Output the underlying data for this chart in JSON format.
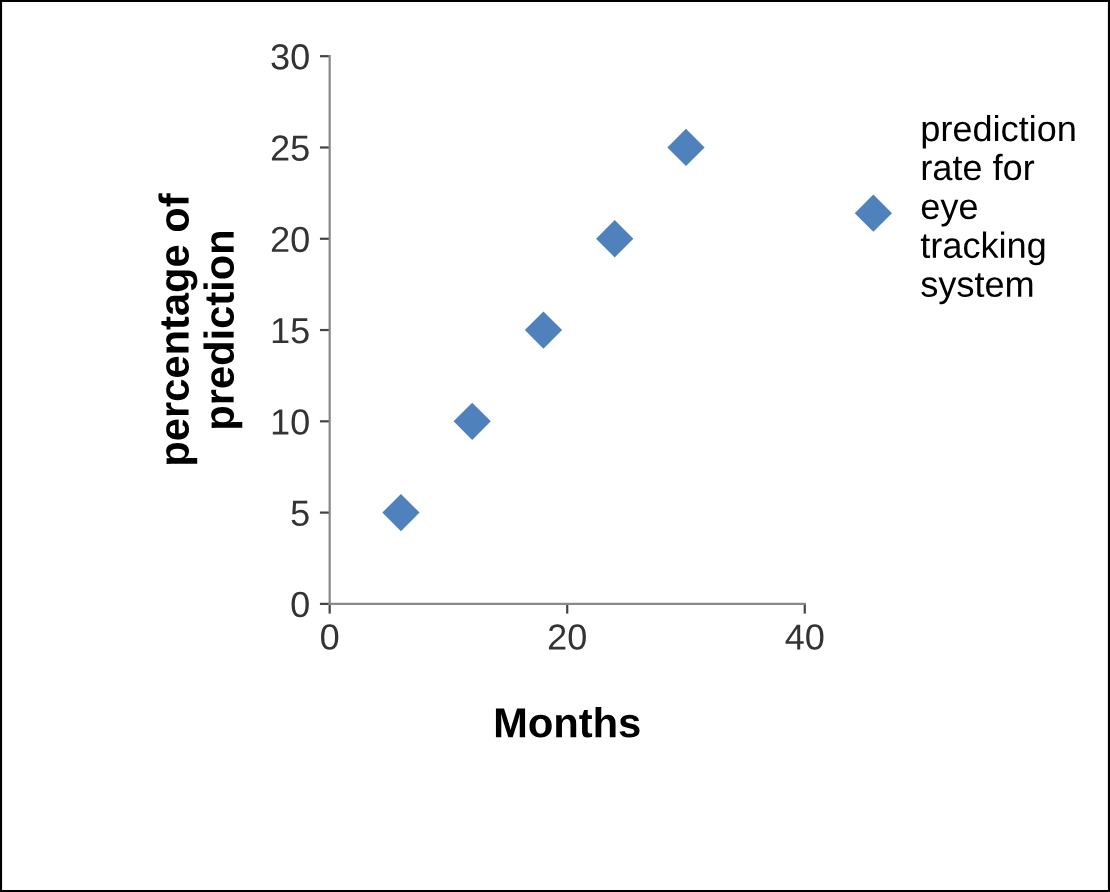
{
  "chart_data": {
    "type": "scatter",
    "xlabel": "Months",
    "ylabel": "percentage of\nprediction",
    "x": [
      6,
      12,
      18,
      24,
      30
    ],
    "series": [
      {
        "name": "prediction\nrate for\neye\ntracking\nsystem",
        "color": "#4f81bd",
        "values": [
          5,
          10,
          15,
          20,
          25
        ]
      }
    ],
    "xlim": [
      0,
      40
    ],
    "xticks": [
      0,
      20,
      40
    ],
    "ylim": [
      0,
      30
    ],
    "yticks": [
      0,
      5,
      10,
      15,
      20,
      25,
      30
    ],
    "grid": false,
    "legend": "right",
    "marker": "diamond"
  }
}
